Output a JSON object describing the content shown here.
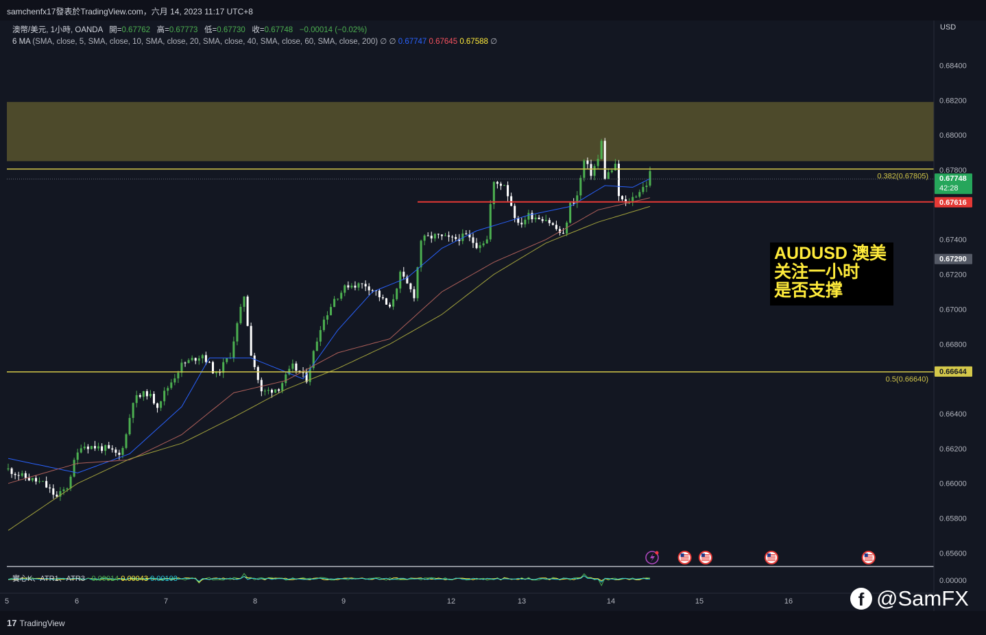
{
  "header": {
    "title": "samchenfx17發表於TradingView.com，六月 14, 2023 11:17 UTC+8"
  },
  "legend": {
    "symbol": "澳幣/美元, 1小時, OANDA",
    "open_label": "開=",
    "open": "0.67762",
    "high_label": "高=",
    "high": "0.67773",
    "low_label": "低=",
    "low": "0.67730",
    "close_label": "收=",
    "close": "0.67748",
    "change": "−0.00014 (−0.02%)",
    "ma_title": "6 MA",
    "ma_params": "(SMA, close, 5, SMA, close, 10, SMA, close, 20, SMA, close, 40, SMA, close, 60, SMA, close, 200)",
    "ma_empty1": "∅",
    "ma_empty2": "∅",
    "ma_v1": "0.67747",
    "ma_v2": "0.67645",
    "ma_v3": "0.67588",
    "ma_empty3": "∅"
  },
  "atr_legend": {
    "title": "實心K、ATR1、ATR3",
    "v1": "−0.00014",
    "v2": "0.00043",
    "v3": "0.00103"
  },
  "currency": "USD",
  "note": {
    "lines": [
      "AUDUSD 澳美",
      "关注一小时",
      "是否支撑"
    ]
  },
  "footer": {
    "brand": "TradingView",
    "logo_mark": "17"
  },
  "watermark": {
    "text": "@SamFX",
    "icon": "facebook-icon"
  },
  "colors": {
    "up": "#4caf50",
    "down": "#ffffff",
    "zone": "#4d4a2b",
    "level": "#d4c84a",
    "support": "#e53935",
    "ma_blue": "#2962ff",
    "ma_red": "#b0605a",
    "ma_olive": "#a3a33c"
  },
  "chart_data": {
    "type": "candlestick",
    "symbol": "AUDUSD",
    "timeframe": "1h",
    "y_axis": {
      "ticks": [
        "0.68400",
        "0.68200",
        "0.68000",
        "0.67800",
        "0.67400",
        "0.67200",
        "0.67000",
        "0.66800",
        "0.66400",
        "0.66200",
        "0.66000",
        "0.65800",
        "0.65600"
      ],
      "range": [
        0.6552,
        0.6858
      ]
    },
    "x_axis": {
      "labels": [
        "6",
        "7",
        "8",
        "9",
        "12",
        "13",
        "14",
        "15",
        "16"
      ],
      "left_partial": "5"
    },
    "price_labels": [
      {
        "text": "0.67748",
        "sub": "42:28",
        "value": 0.67748,
        "color": "#26a65b"
      },
      {
        "text": "0.67616",
        "value": 0.67616,
        "color": "#e53935"
      },
      {
        "text": "0.67290",
        "value": 0.6729,
        "color": "#555a66"
      },
      {
        "text": "0.66644",
        "value": 0.66644,
        "color": "#d4c84a"
      }
    ],
    "fib_levels": [
      {
        "label": "0.382(0.67805)",
        "value": 0.67805
      },
      {
        "label": "0.5(0.66640)",
        "value": 0.6664
      }
    ],
    "support_line": {
      "value": 0.67616,
      "from": 118,
      "to": 188
    },
    "zone": {
      "from": 0.6785,
      "to": 0.6819
    },
    "event_markers": [
      {
        "icon": "flash-icon",
        "index": 185
      },
      {
        "icon": "us-flag-icon",
        "index": 195
      },
      {
        "icon": "us-flag-icon",
        "index": 201
      },
      {
        "icon": "us-flag-icon",
        "index": 220
      },
      {
        "icon": "us-flag-icon",
        "index": 248
      }
    ],
    "anchors": [
      [
        0,
        0.6608
      ],
      [
        4,
        0.6604
      ],
      [
        10,
        0.66
      ],
      [
        14,
        0.6592
      ],
      [
        17,
        0.6598
      ],
      [
        19,
        0.6612
      ],
      [
        21,
        0.6622
      ],
      [
        28,
        0.662
      ],
      [
        32,
        0.6616
      ],
      [
        34,
        0.6628
      ],
      [
        36,
        0.6648
      ],
      [
        40,
        0.6652
      ],
      [
        43,
        0.6645
      ],
      [
        45,
        0.6652
      ],
      [
        50,
        0.6668
      ],
      [
        56,
        0.6674
      ],
      [
        60,
        0.6662
      ],
      [
        64,
        0.6674
      ],
      [
        68,
        0.6708
      ],
      [
        70,
        0.6675
      ],
      [
        73,
        0.6652
      ],
      [
        78,
        0.6655
      ],
      [
        82,
        0.6667
      ],
      [
        86,
        0.666
      ],
      [
        90,
        0.669
      ],
      [
        94,
        0.6706
      ],
      [
        98,
        0.6714
      ],
      [
        103,
        0.6714
      ],
      [
        106,
        0.671
      ],
      [
        110,
        0.67
      ],
      [
        113,
        0.672
      ],
      [
        117,
        0.6708
      ],
      [
        119,
        0.674
      ],
      [
        123,
        0.6742
      ],
      [
        128,
        0.674
      ],
      [
        132,
        0.6742
      ],
      [
        135,
        0.6737
      ],
      [
        138,
        0.674
      ],
      [
        139,
        0.676
      ],
      [
        140,
        0.6772
      ],
      [
        143,
        0.6772
      ],
      [
        145,
        0.676
      ],
      [
        147,
        0.6748
      ],
      [
        150,
        0.6754
      ],
      [
        155,
        0.6752
      ],
      [
        158,
        0.6746
      ],
      [
        160,
        0.6742
      ],
      [
        162,
        0.676
      ],
      [
        164,
        0.6765
      ],
      [
        165,
        0.6775
      ],
      [
        166,
        0.6785
      ],
      [
        168,
        0.6778
      ],
      [
        170,
        0.6786
      ],
      [
        171,
        0.6796
      ],
      [
        172,
        0.6776
      ],
      [
        175,
        0.6782
      ],
      [
        176,
        0.6765
      ],
      [
        178,
        0.676
      ],
      [
        180,
        0.6764
      ],
      [
        182,
        0.6768
      ],
      [
        184,
        0.6772
      ],
      [
        185,
        0.6778
      ]
    ],
    "moving_averages": [
      {
        "color": "#2962ff",
        "anchors": [
          [
            0,
            0.66143
          ],
          [
            20,
            0.6606
          ],
          [
            35,
            0.6617
          ],
          [
            50,
            0.6644
          ],
          [
            58,
            0.6672
          ],
          [
            70,
            0.6672
          ],
          [
            85,
            0.666
          ],
          [
            95,
            0.6688
          ],
          [
            105,
            0.671
          ],
          [
            115,
            0.6718
          ],
          [
            125,
            0.6735
          ],
          [
            135,
            0.6745
          ],
          [
            150,
            0.6754
          ],
          [
            162,
            0.6759
          ],
          [
            172,
            0.6771
          ],
          [
            180,
            0.677
          ],
          [
            185,
            0.6775
          ]
        ]
      },
      {
        "color": "#b0605a",
        "anchors": [
          [
            0,
            0.66
          ],
          [
            20,
            0.66115
          ],
          [
            35,
            0.66135
          ],
          [
            50,
            0.6628
          ],
          [
            65,
            0.6652
          ],
          [
            80,
            0.6659
          ],
          [
            95,
            0.6675
          ],
          [
            110,
            0.6683
          ],
          [
            125,
            0.671
          ],
          [
            140,
            0.6727
          ],
          [
            155,
            0.674
          ],
          [
            170,
            0.6757
          ],
          [
            185,
            0.6764
          ]
        ]
      },
      {
        "color": "#a3a33c",
        "anchors": [
          [
            0,
            0.6573
          ],
          [
            20,
            0.66
          ],
          [
            35,
            0.6614
          ],
          [
            50,
            0.6623
          ],
          [
            65,
            0.6638
          ],
          [
            80,
            0.6654
          ],
          [
            95,
            0.6666
          ],
          [
            110,
            0.668
          ],
          [
            125,
            0.6697
          ],
          [
            140,
            0.672
          ],
          [
            155,
            0.6738
          ],
          [
            170,
            0.675
          ],
          [
            185,
            0.6759
          ]
        ]
      }
    ]
  }
}
